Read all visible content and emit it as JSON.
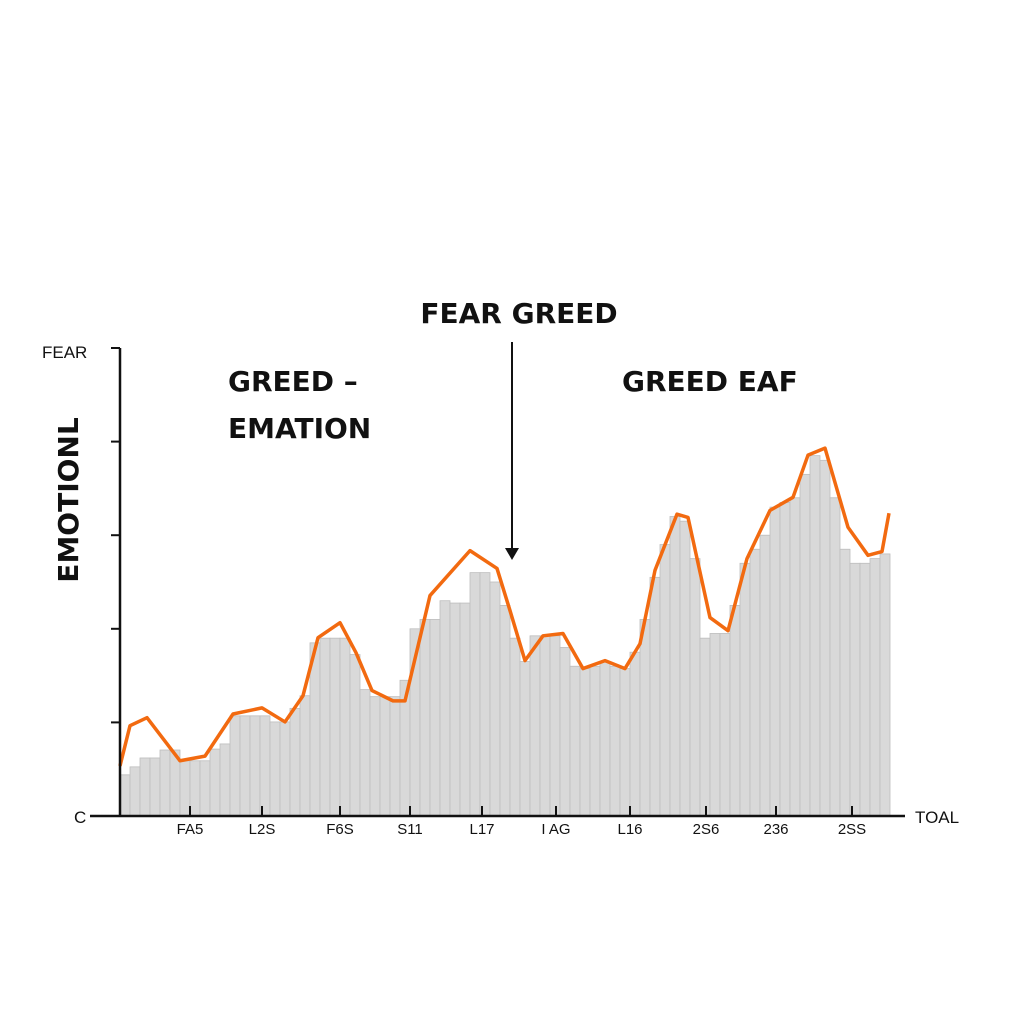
{
  "chart_data": {
    "type": "bar",
    "title": "",
    "ylabel": "EMOTIONL",
    "xlabel": "TOAL",
    "y_top_label": "FEAR",
    "y_bottom_label": "C",
    "ylim": [
      0,
      100
    ],
    "y_ticks": [
      0,
      20,
      40,
      60,
      80,
      100
    ],
    "x_tick_labels": [
      "FA5",
      "L2S",
      "F6S",
      "S11",
      "L17",
      "I AG",
      "L16",
      "2S6",
      "236",
      "2SS"
    ],
    "x_tick_positions": [
      7,
      14.2,
      22,
      29,
      36.2,
      43.6,
      51,
      58.6,
      65.6,
      73.2
    ],
    "grid": false,
    "bar_color": "#d9d9d9",
    "line_color": "#f26a10",
    "bars": [
      8.8,
      10.5,
      12.4,
      12.4,
      14.1,
      14.1,
      11.8,
      11.8,
      11.8,
      14.3,
      15.4,
      21.4,
      21.4,
      21.4,
      21.4,
      20.1,
      20.1,
      23,
      25.7,
      37,
      38,
      38,
      38,
      34.5,
      27,
      25.5,
      25.5,
      25.5,
      29,
      40,
      42,
      42,
      46,
      45.5,
      45.5,
      52,
      52,
      50,
      45,
      38,
      33,
      38.5,
      38.5,
      38.5,
      36,
      32,
      31.5,
      32,
      33,
      32,
      31.5,
      35,
      42,
      51,
      58,
      64,
      63,
      55,
      38,
      39,
      39,
      45,
      54,
      57,
      60,
      66,
      67,
      68,
      73,
      77,
      76,
      68,
      57,
      54,
      54,
      55,
      56
    ],
    "line": {
      "x": [
        0,
        1,
        2.7,
        6,
        8.5,
        11.3,
        14.2,
        16.5,
        18.3,
        19.8,
        22,
        23.6,
        25.2,
        27.3,
        28.5,
        31,
        32.5,
        35,
        37.7,
        39,
        40.5,
        42.3,
        44.3,
        46.3,
        48.5,
        50.5,
        52,
        53.5,
        55.7,
        56.8,
        59,
        60.8,
        62.7,
        65,
        67.3,
        68.8,
        70.5,
        72.8,
        74.8,
        76.2,
        76.9
      ],
      "y": [
        10.7,
        19.3,
        21,
        11.8,
        12.8,
        21.8,
        23.1,
        20.1,
        25.7,
        38.1,
        41.3,
        34.9,
        26.8,
        24.6,
        24.6,
        47.1,
        50.7,
        56.7,
        52.9,
        43.9,
        33.2,
        38.5,
        39,
        31.5,
        33.2,
        31.5,
        36.8,
        52.5,
        64.5,
        63.8,
        42.4,
        39.6,
        55,
        65.3,
        68.1,
        77.1,
        78.6,
        61.7,
        55.7,
        56.5,
        64.7
      ]
    },
    "annotations": [
      {
        "text": "FEAR GREED",
        "arrow": true
      },
      {
        "text": "GREED –",
        "line2": "EMATION"
      },
      {
        "text": "GREED EAF"
      }
    ]
  }
}
